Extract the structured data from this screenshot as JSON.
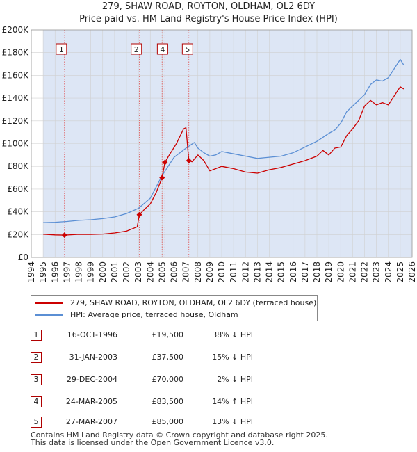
{
  "chart_data": {
    "type": "line",
    "title": "279, SHAW ROAD, ROYTON, OLDHAM, OL2 6DY",
    "subtitle": "Price paid vs. HM Land Registry's House Price Index (HPI)",
    "xlim": [
      1994,
      2026
    ],
    "ylim": [
      0,
      200000
    ],
    "x_ticks": [
      1994,
      1995,
      1996,
      1997,
      1998,
      1999,
      2000,
      2001,
      2002,
      2003,
      2004,
      2005,
      2006,
      2007,
      2008,
      2009,
      2010,
      2011,
      2012,
      2013,
      2014,
      2015,
      2016,
      2017,
      2018,
      2019,
      2020,
      2021,
      2022,
      2023,
      2024,
      2025,
      2026
    ],
    "y_ticks": [
      {
        "value": 0,
        "label": "£0"
      },
      {
        "value": 20000,
        "label": "£20K"
      },
      {
        "value": 40000,
        "label": "£40K"
      },
      {
        "value": 60000,
        "label": "£60K"
      },
      {
        "value": 80000,
        "label": "£80K"
      },
      {
        "value": 100000,
        "label": "£100K"
      },
      {
        "value": 120000,
        "label": "£120K"
      },
      {
        "value": 140000,
        "label": "£140K"
      },
      {
        "value": 160000,
        "label": "£160K"
      },
      {
        "value": 180000,
        "label": "£180K"
      },
      {
        "value": 200000,
        "label": "£200K"
      }
    ],
    "data_start_year": 1995,
    "colors": {
      "price": "#cc0000",
      "hpi": "#5b8fd4",
      "shade": "#dde6f5",
      "grid": "#d0d0d0",
      "marker_line": "#e05050"
    },
    "series": [
      {
        "name": "279, SHAW ROAD, ROYTON, OLDHAM, OL2 6DY (terraced house)",
        "color": "#cc0000",
        "points": [
          [
            1995.0,
            20300
          ],
          [
            1996.0,
            19700
          ],
          [
            1996.79,
            19500
          ],
          [
            1998.0,
            20200
          ],
          [
            1999.0,
            20100
          ],
          [
            2000.0,
            20400
          ],
          [
            2001.0,
            21400
          ],
          [
            2002.0,
            23000
          ],
          [
            2002.9,
            26800
          ],
          [
            2003.08,
            37500
          ],
          [
            2003.5,
            42000
          ],
          [
            2004.0,
            47000
          ],
          [
            2004.5,
            57000
          ],
          [
            2004.99,
            70000
          ],
          [
            2005.23,
            83500
          ],
          [
            2005.6,
            90000
          ],
          [
            2006.2,
            100000
          ],
          [
            2006.8,
            113000
          ],
          [
            2007.0,
            114000
          ],
          [
            2007.24,
            85000
          ],
          [
            2007.5,
            84000
          ],
          [
            2008.0,
            90000
          ],
          [
            2008.5,
            85000
          ],
          [
            2009.0,
            76000
          ],
          [
            2009.5,
            78000
          ],
          [
            2010.0,
            80000
          ],
          [
            2011.0,
            78000
          ],
          [
            2012.0,
            75000
          ],
          [
            2013.0,
            74000
          ],
          [
            2014.0,
            77000
          ],
          [
            2015.0,
            79000
          ],
          [
            2016.0,
            82000
          ],
          [
            2017.0,
            85000
          ],
          [
            2018.0,
            89000
          ],
          [
            2018.5,
            94000
          ],
          [
            2019.0,
            90000
          ],
          [
            2019.5,
            96000
          ],
          [
            2020.0,
            97000
          ],
          [
            2020.5,
            107000
          ],
          [
            2021.0,
            113000
          ],
          [
            2021.5,
            120000
          ],
          [
            2022.0,
            133000
          ],
          [
            2022.5,
            138000
          ],
          [
            2023.0,
            134000
          ],
          [
            2023.5,
            136000
          ],
          [
            2024.0,
            134000
          ],
          [
            2024.5,
            142000
          ],
          [
            2025.0,
            150000
          ],
          [
            2025.3,
            148000
          ]
        ]
      },
      {
        "name": "HPI: Average price, terraced house, Oldham",
        "color": "#5b8fd4",
        "points": [
          [
            1995.0,
            30500
          ],
          [
            1996.0,
            30800
          ],
          [
            1997.0,
            31500
          ],
          [
            1998.0,
            32500
          ],
          [
            1999.0,
            33000
          ],
          [
            2000.0,
            34000
          ],
          [
            2001.0,
            35500
          ],
          [
            2002.0,
            38500
          ],
          [
            2003.0,
            43000
          ],
          [
            2004.0,
            52000
          ],
          [
            2005.0,
            72000
          ],
          [
            2005.5,
            80000
          ],
          [
            2006.0,
            88000
          ],
          [
            2007.0,
            96000
          ],
          [
            2007.7,
            101000
          ],
          [
            2008.0,
            96000
          ],
          [
            2008.5,
            92000
          ],
          [
            2009.0,
            89000
          ],
          [
            2009.5,
            90000
          ],
          [
            2010.0,
            93000
          ],
          [
            2011.0,
            91000
          ],
          [
            2012.0,
            89000
          ],
          [
            2013.0,
            87000
          ],
          [
            2014.0,
            88000
          ],
          [
            2015.0,
            89000
          ],
          [
            2016.0,
            92000
          ],
          [
            2017.0,
            97000
          ],
          [
            2018.0,
            102000
          ],
          [
            2019.0,
            109000
          ],
          [
            2019.5,
            112000
          ],
          [
            2020.0,
            118000
          ],
          [
            2020.5,
            128000
          ],
          [
            2021.0,
            133000
          ],
          [
            2022.0,
            143000
          ],
          [
            2022.5,
            152000
          ],
          [
            2023.0,
            156000
          ],
          [
            2023.5,
            155000
          ],
          [
            2024.0,
            158000
          ],
          [
            2024.5,
            166000
          ],
          [
            2025.0,
            174000
          ],
          [
            2025.3,
            169000
          ]
        ]
      }
    ],
    "sales": [
      {
        "n": "1",
        "year": 1996.79,
        "price": 19500
      },
      {
        "n": "2",
        "year": 2003.08,
        "price": 37500
      },
      {
        "n": "3",
        "year": 2004.99,
        "price": 70000
      },
      {
        "n": "4",
        "year": 2005.23,
        "price": 83500
      },
      {
        "n": "5",
        "year": 2007.24,
        "price": 85000
      }
    ],
    "label_boxes": [
      {
        "n": "1",
        "year": 1996.5
      },
      {
        "n": "2",
        "year": 2002.8
      },
      {
        "n": "4",
        "year": 2005.0
      },
      {
        "n": "5",
        "year": 2007.1
      }
    ]
  },
  "legend": {
    "price_label": "279, SHAW ROAD, ROYTON, OLDHAM, OL2 6DY (terraced house)",
    "hpi_label": "HPI: Average price, terraced house, Oldham"
  },
  "transactions": [
    {
      "n": "1",
      "date": "16-OCT-1996",
      "price": "£19,500",
      "hpi": "38% ↓ HPI"
    },
    {
      "n": "2",
      "date": "31-JAN-2003",
      "price": "£37,500",
      "hpi": "15% ↓ HPI"
    },
    {
      "n": "3",
      "date": "29-DEC-2004",
      "price": "£70,000",
      "hpi": "2% ↓ HPI"
    },
    {
      "n": "4",
      "date": "24-MAR-2005",
      "price": "£83,500",
      "hpi": "14% ↑ HPI"
    },
    {
      "n": "5",
      "date": "27-MAR-2007",
      "price": "£85,000",
      "hpi": "13% ↓ HPI"
    }
  ],
  "footer": {
    "line1": "Contains HM Land Registry data © Crown copyright and database right 2025.",
    "line2": "This data is licensed under the Open Government Licence v3.0."
  }
}
